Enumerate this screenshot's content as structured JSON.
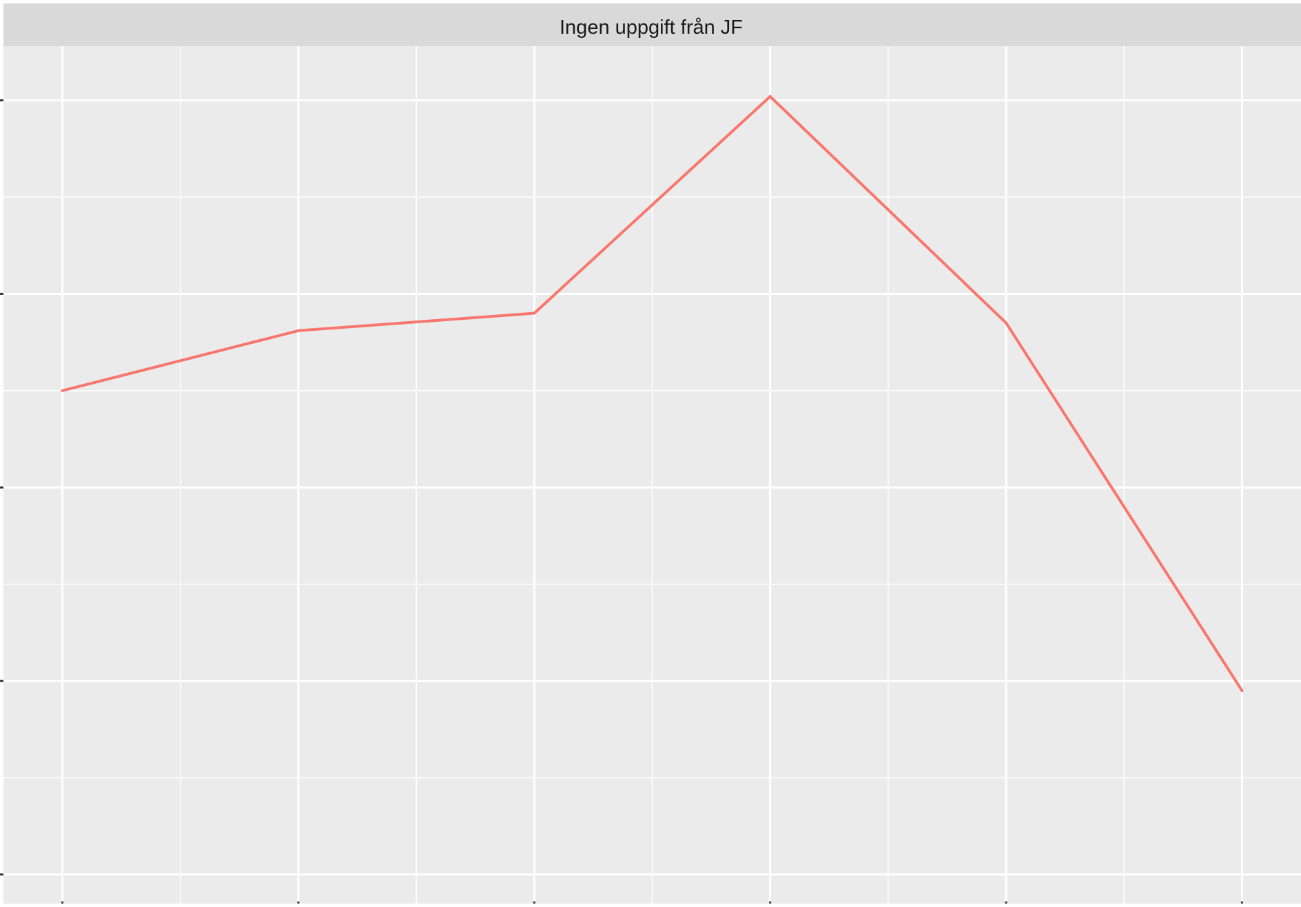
{
  "chart_data": {
    "type": "line",
    "facet_title": "Ingen uppgift från JF",
    "x": [
      1,
      2,
      3,
      4,
      5,
      6
    ],
    "series": [
      {
        "values": [
          3.5,
          3.81,
          3.9,
          5.02,
          3.85,
          1.95
        ]
      }
    ],
    "xlim": [
      0.75,
      6.25
    ],
    "ylim": [
      0.85,
      5.28
    ],
    "y_major_ticks": [
      1,
      2,
      3,
      4,
      5
    ],
    "y_minor_ticks": [
      1.5,
      2.5,
      3.5,
      4.5
    ],
    "x_major_ticks": [
      1,
      2,
      3,
      4,
      5,
      6
    ],
    "x_minor_ticks": [
      1.5,
      2.5,
      3.5,
      4.5,
      5.5
    ],
    "grid": true,
    "legend": "none",
    "colors": {
      "line": "#f8766d",
      "panel_background": "#ebebeb",
      "strip_background": "#d9d9d9",
      "grid": "#ffffff",
      "text": "#1a1a1a",
      "tick": "#333333"
    }
  }
}
